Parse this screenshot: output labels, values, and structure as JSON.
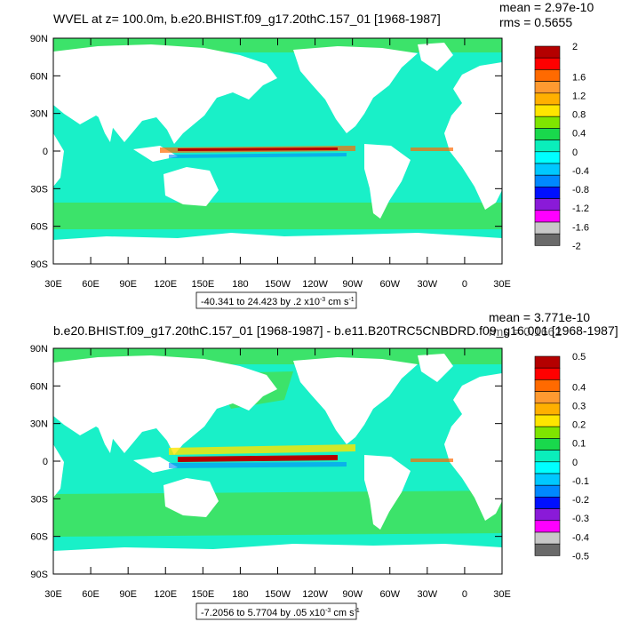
{
  "panels": [
    {
      "title": "WVEL at z= 100.0m, b.e20.BHIST.f09_g17.20thC.157_01 [1968-1987]",
      "stats": {
        "mean": "mean = 2.97e-10",
        "rms": "rms = 0.5655"
      },
      "range_label_prefix": "-40.341 to 24.423 by .2 x10",
      "range_label_exp": "-3",
      "range_label_unit": " cm s",
      "range_label_unit_exp": "-1",
      "colorbar_labels": [
        "2",
        "1.6",
        "1.2",
        "0.8",
        "0.4",
        "0",
        "-0.4",
        "-0.8",
        "-1.2",
        "-1.6",
        "-2"
      ]
    },
    {
      "title": "b.e20.BHIST.f09_g17.20thC.157_01 [1968-1987] - b.e11.B20TRC5CNBDRD.f09_g16.001 [1968-1987]",
      "stats": {
        "mean": "mean = 3.771e-10",
        "rms": "rms = 0.1662"
      },
      "range_label_prefix": "-7.2056 to 5.7704 by .05 x10",
      "range_label_exp": "-3",
      "range_label_unit": " cm s",
      "range_label_unit_exp": "-1",
      "colorbar_labels": [
        "0.5",
        "0.4",
        "0.3",
        "0.2",
        "0.1",
        "0",
        "-0.1",
        "-0.2",
        "-0.3",
        "-0.4",
        "-0.5"
      ]
    }
  ],
  "axes": {
    "lat_labels": [
      "90N",
      "60N",
      "30N",
      "0",
      "30S",
      "60S",
      "90S"
    ],
    "lon_labels": [
      "30E",
      "60E",
      "90E",
      "120E",
      "150E",
      "180",
      "150W",
      "120W",
      "90W",
      "60W",
      "30W",
      "0",
      "30E"
    ]
  },
  "colors": {
    "colorbar": [
      "#b40000",
      "#ff0000",
      "#ff6a00",
      "#ff9a30",
      "#ffb000",
      "#ffe500",
      "#7fe500",
      "#19d84c",
      "#0aeebb",
      "#00ffff",
      "#00c8ff",
      "#0088ff",
      "#0010ff",
      "#8a1ad8",
      "#ff00ff",
      "#c8c8c8",
      "#6a6a6a"
    ],
    "ocean": "#19f0c8",
    "land": "#ffffff"
  }
}
